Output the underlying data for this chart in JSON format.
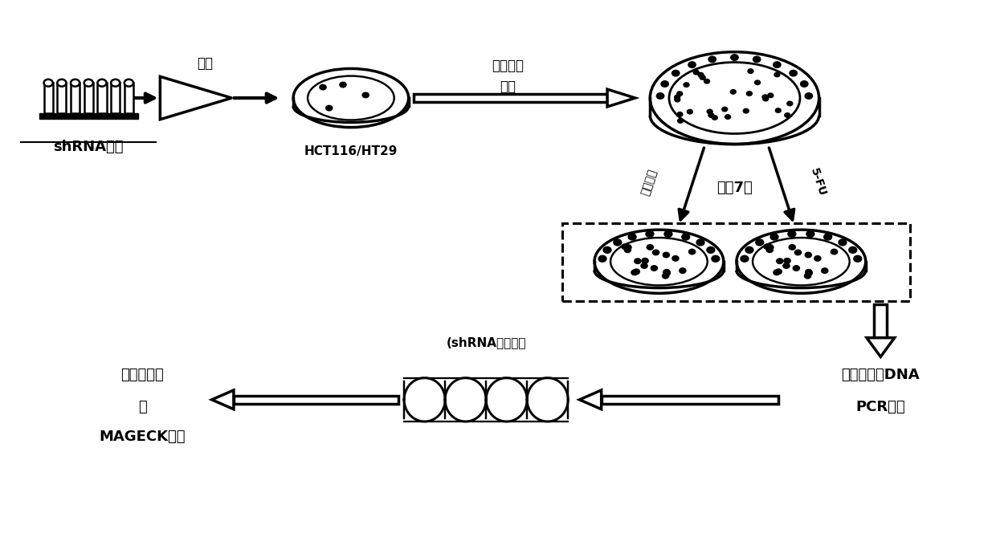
{
  "bg_color": "#ffffff",
  "text_color": "#000000",
  "labels": {
    "shrna_library": "shRNA文库",
    "cell_line": "HCT116/HT29",
    "puromycin": "嘴呀霜素",
    "screen": "筛选",
    "culture": "培养7天",
    "negative_ctrl": "阴性对照",
    "five_fu": "5-FU",
    "separate_dna": "分离基因组DNA",
    "pcr": "PCR扩增",
    "shrna_mix": "(shRNA混合物）",
    "sequencing": "高通量测序",
    "and": "及",
    "mageck": "MAGECK分析",
    "infect": "感染"
  },
  "figsize": [
    12.4,
    6.95
  ],
  "dpi": 100
}
